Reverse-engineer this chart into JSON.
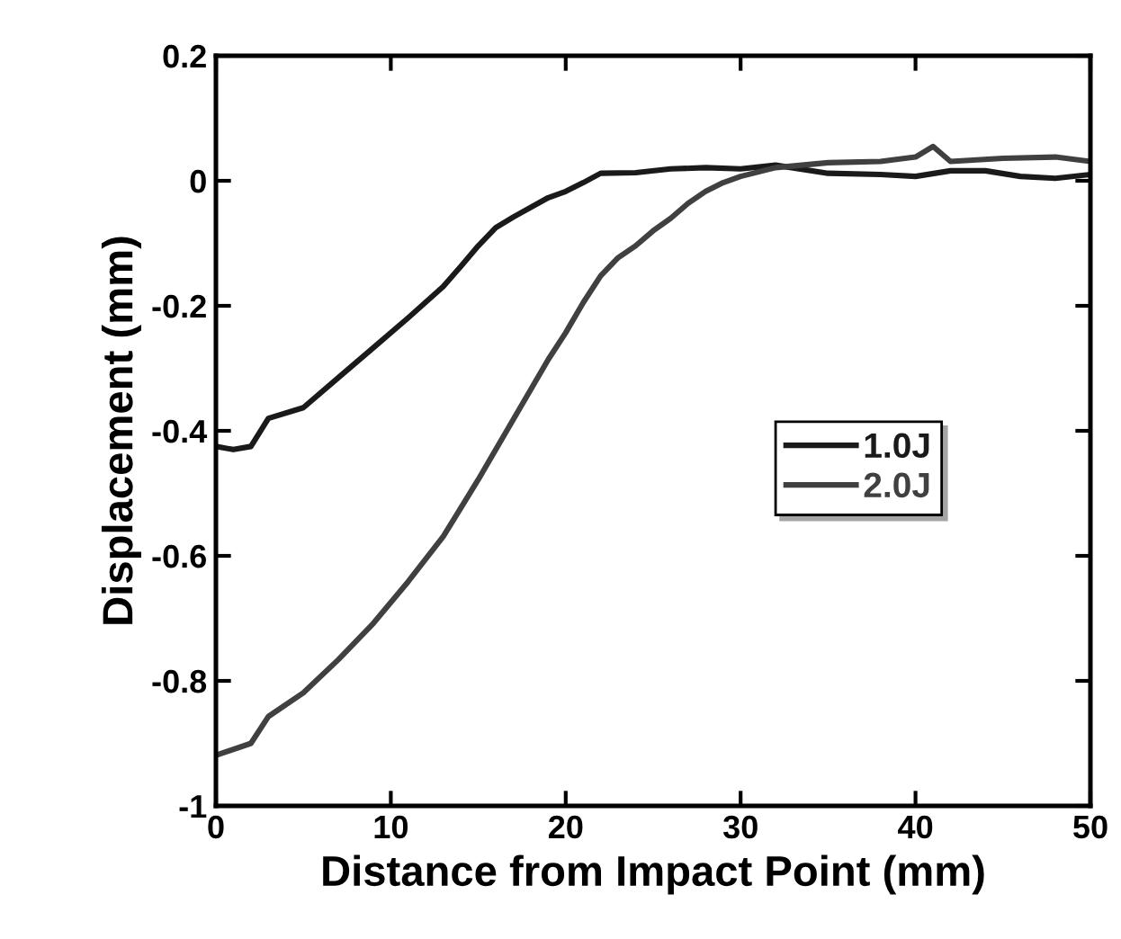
{
  "chart_data": {
    "type": "line",
    "xlabel": "Distance from Impact Point (mm)",
    "ylabel": "Displacement (mm)",
    "xlim": [
      0,
      50
    ],
    "xticks": [
      0,
      10,
      20,
      30,
      40,
      50
    ],
    "ylim": [
      -1,
      0.2
    ],
    "yticks": [
      -1,
      -0.8,
      -0.6,
      -0.4,
      -0.2,
      0,
      0.2
    ],
    "legend": "right",
    "grid": false,
    "marker": "none",
    "line_style": "solid",
    "series": [
      {
        "name": "1.0J",
        "color": "#1a1a1a",
        "x": [
          0,
          1,
          2,
          3,
          5,
          7,
          9,
          11,
          13,
          14,
          15,
          16,
          17,
          19,
          20,
          21,
          22,
          24,
          26,
          28,
          30,
          32,
          35,
          38,
          40,
          42,
          44,
          46,
          48,
          50
        ],
        "values": [
          -0.425,
          -0.43,
          -0.425,
          -0.38,
          -0.363,
          -0.315,
          -0.267,
          -0.219,
          -0.169,
          -0.137,
          -0.104,
          -0.075,
          -0.058,
          -0.027,
          -0.017,
          -0.003,
          0.012,
          0.013,
          0.019,
          0.021,
          0.019,
          0.025,
          0.012,
          0.01,
          0.007,
          0.016,
          0.016,
          0.007,
          0.004,
          0.01
        ]
      },
      {
        "name": "2.0J",
        "color": "#404040",
        "x": [
          0,
          2,
          3,
          5,
          7,
          9,
          11,
          13,
          15,
          17,
          19,
          20,
          21,
          22,
          23,
          24,
          25,
          26,
          27,
          28,
          29,
          30,
          32,
          35,
          38,
          40,
          41,
          42,
          45,
          48,
          50
        ],
        "values": [
          -0.919,
          -0.9,
          -0.857,
          -0.819,
          -0.766,
          -0.708,
          -0.641,
          -0.569,
          -0.478,
          -0.382,
          -0.286,
          -0.243,
          -0.195,
          -0.152,
          -0.123,
          -0.104,
          -0.08,
          -0.06,
          -0.036,
          -0.017,
          -0.003,
          0.007,
          0.021,
          0.029,
          0.031,
          0.038,
          0.055,
          0.031,
          0.036,
          0.038,
          0.031
        ]
      }
    ]
  }
}
